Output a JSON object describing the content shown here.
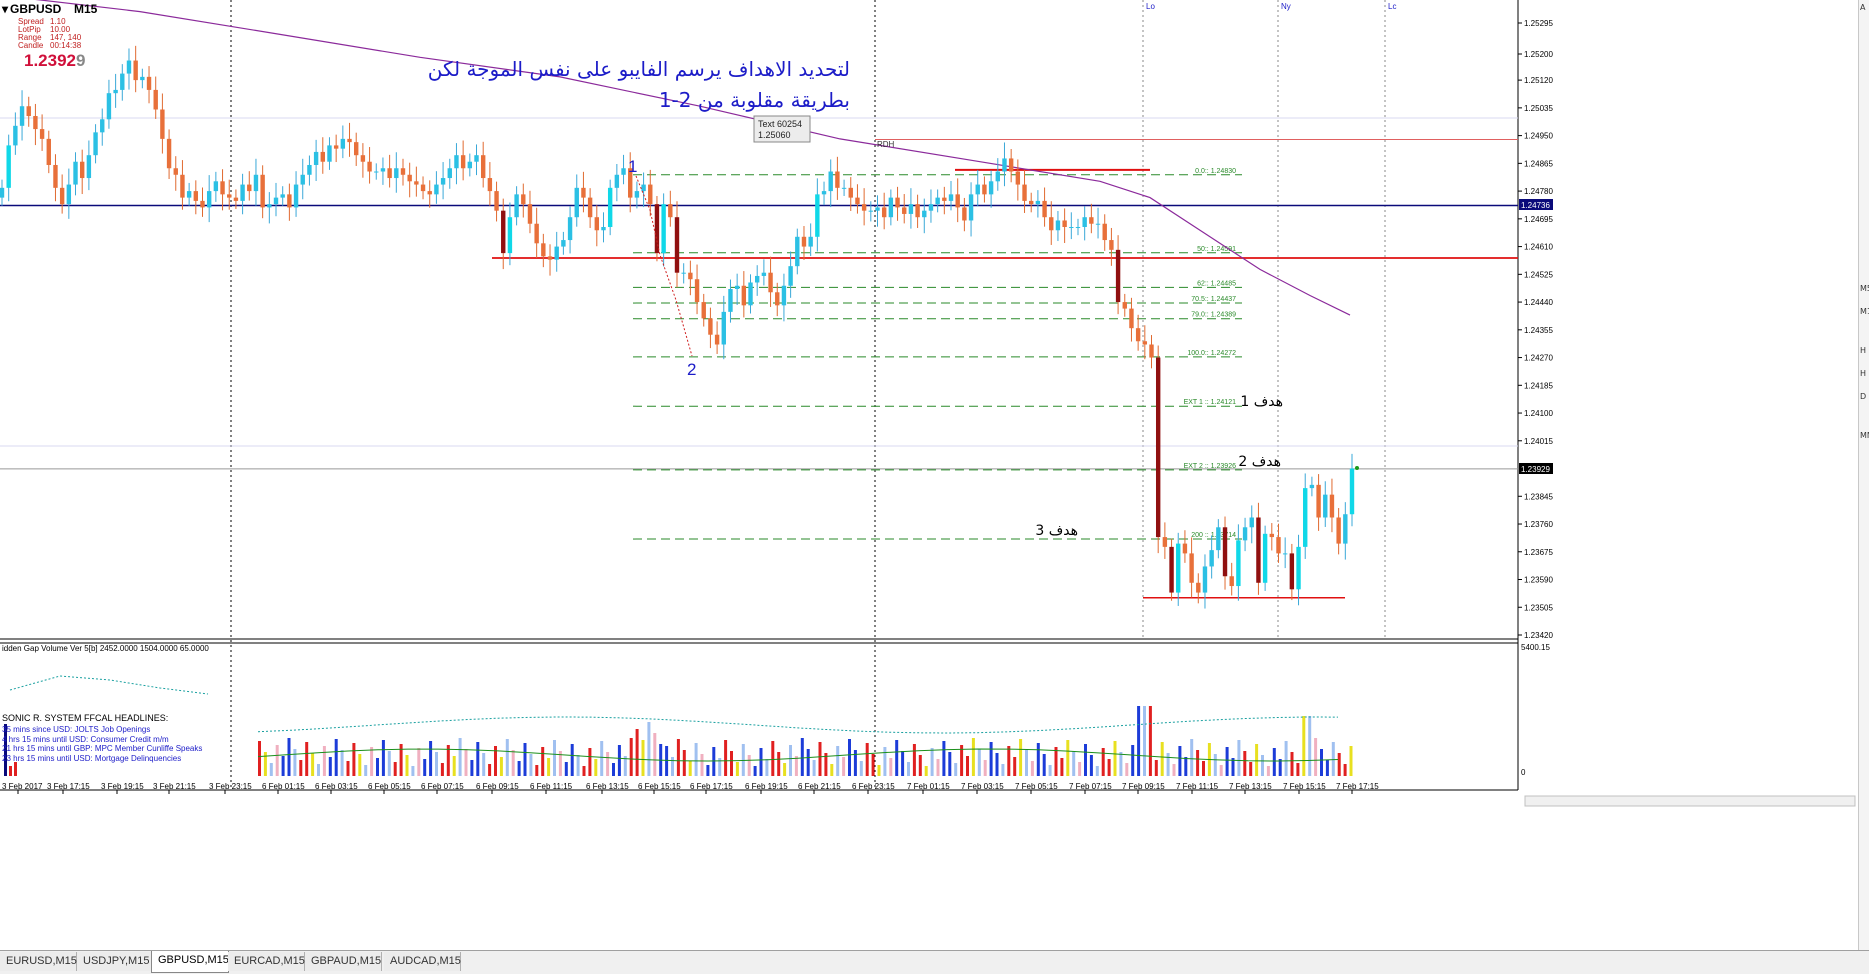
{
  "header": {
    "symbol": "GBPUSD",
    "timeframe": "M15",
    "spread_label": "Spread",
    "spread_value": "1.10",
    "lotpip_label": "LotPip",
    "lotpip_value": "10.00",
    "range_label": "Range",
    "range_value": "147, 140",
    "candle_label": "Candle",
    "candle_value": "00:14:38",
    "price_main": "1.2392",
    "price_last_digit": "9"
  },
  "annotation": {
    "line1": "لتحديد الاهداف يرسم الفايبو على نفس الموجة لكن",
    "line2": "بطريقة مقلوبة من 2-1",
    "tooltip_line1": "Text 60254",
    "tooltip_line2": "1.25060",
    "wave_label_1": "1",
    "wave_label_2": "2",
    "target1": "هدف 1",
    "target2": "هدف 2",
    "target3": "هدف 3",
    "rdh": "RDH"
  },
  "session_labels": [
    "Lo",
    "Ny",
    "Lc"
  ],
  "fib_levels": [
    {
      "label": "0.0:: 1.24830",
      "price": 1.2483
    },
    {
      "label": "50:: 1.24591",
      "price": 1.24591
    },
    {
      "label": "62:: 1.24485",
      "price": 1.24485
    },
    {
      "label": "70.5:: 1.24437",
      "price": 1.24437
    },
    {
      "label": "79.0:: 1.24389",
      "price": 1.24389
    },
    {
      "label": "100.0:: 1.24272",
      "price": 1.24272
    },
    {
      "label": "EXT 1 :: 1.24121",
      "price": 1.24121
    },
    {
      "label": "EXT 2 :: 1.23926",
      "price": 1.23926
    },
    {
      "label": "200 :: 1.23714",
      "price": 1.23714
    }
  ],
  "horizontal_lines": {
    "blue_price": 1.24736,
    "current_price": 1.23929,
    "red_support_price": 1.24575,
    "red_bottom_price": 1.23534,
    "red_top_price": 1.24845,
    "top_red_thin_price": 1.24938
  },
  "price_tags": {
    "blue": "1.24736",
    "current": "1.23929"
  },
  "indicator": {
    "title": "idden Gap Volume Ver 5[b] 2452.0000 1504.0000 65.0000",
    "axis_top": "5400.15",
    "axis_bottom": "0",
    "headline_title": "SONIC R. SYSTEM  FFCAL HEADLINES:",
    "headlines": [
      "35 mins since USD: JOLTS Job Openings",
      "4 hrs 15 mins until USD: Consumer Credit m/m",
      "21 hrs 15 mins until GBP: MPC Member Cunliffe Speaks",
      "23 hrs 15 mins until USD: Mortgage Delinquencies"
    ]
  },
  "right_panel_letters": [
    "A",
    "M5",
    "M1",
    "H",
    "H",
    "D",
    "MN"
  ],
  "tabs": [
    "EURUSD,M15",
    "USDJPY,M15",
    "GBPUSD,M15",
    "EURCAD,M15",
    "GBPAUD,M15",
    "AUDCAD,M15"
  ],
  "active_tab": "GBPUSD,M15",
  "chart_data": {
    "type": "candlestick",
    "title": "GBPUSD M15",
    "y_axis_ticks": [
      "1.25295",
      "1.25200",
      "1.25120",
      "1.25035",
      "1.24950",
      "1.24865",
      "1.24780",
      "1.24695",
      "1.24610",
      "1.24525",
      "1.24440",
      "1.24355",
      "1.24270",
      "1.24185",
      "1.24100",
      "1.24015",
      "1.23845",
      "1.23760",
      "1.23675",
      "1.23590",
      "1.23505",
      "1.23420"
    ],
    "y_range": [
      1.2339,
      1.2535
    ],
    "x_axis_labels": [
      "3 Feb 2017",
      "3 Feb 17:15",
      "3 Feb 19:15",
      "3 Feb 21:15",
      "3 Feb 23:15",
      "6 Feb 01:15",
      "6 Feb 03:15",
      "6 Feb 05:15",
      "6 Feb 07:15",
      "6 Feb 09:15",
      "6 Feb 11:15",
      "6 Feb 13:15",
      "6 Feb 15:15",
      "6 Feb 17:15",
      "6 Feb 19:15",
      "6 Feb 21:15",
      "6 Feb 23:15",
      "7 Feb 01:15",
      "7 Feb 03:15",
      "7 Feb 05:15",
      "7 Feb 07:15",
      "7 Feb 09:15",
      "7 Feb 11:15",
      "7 Feb 13:15",
      "7 Feb 15:15",
      "7 Feb 17:15"
    ],
    "close": [
      1.2479,
      1.2492,
      1.2498,
      1.2504,
      1.2501,
      1.2497,
      1.2494,
      1.2486,
      1.2479,
      1.2474,
      1.248,
      1.2487,
      1.2482,
      1.2489,
      1.2496,
      1.25,
      1.2508,
      1.2509,
      1.2514,
      1.2518,
      1.2512,
      1.2513,
      1.2509,
      1.2503,
      1.2494,
      1.2485,
      1.2483,
      1.2476,
      1.2478,
      1.2475,
      1.2473,
      1.2478,
      1.2481,
      1.2477,
      1.2476,
      1.2475,
      1.248,
      1.2478,
      1.2483,
      1.2473,
      1.2474,
      1.2476,
      1.2477,
      1.2473,
      1.248,
      1.2483,
      1.2486,
      1.249,
      1.2487,
      1.2492,
      1.2491,
      1.2494,
      1.2493,
      1.2489,
      1.2487,
      1.2484,
      1.2484,
      1.2485,
      1.2482,
      1.2485,
      1.2483,
      1.2481,
      1.248,
      1.2478,
      1.2477,
      1.248,
      1.2482,
      1.2485,
      1.2489,
      1.2485,
      1.2487,
      1.2489,
      1.2482,
      1.2478,
      1.2472,
      1.2459,
      1.247,
      1.2477,
      1.2474,
      1.2468,
      1.2462,
      1.2458,
      1.2457,
      1.2461,
      1.2463,
      1.247,
      1.2479,
      1.2476,
      1.247,
      1.2466,
      1.2467,
      1.2479,
      1.2483,
      1.2485,
      1.2476,
      1.2478,
      1.248,
      1.2474,
      1.2459,
      1.2474,
      1.247,
      1.2453,
      1.2453,
      1.2451,
      1.2444,
      1.2439,
      1.2434,
      1.2431,
      1.2441,
      1.2448,
      1.2449,
      1.2443,
      1.245,
      1.2452,
      1.2453,
      1.2447,
      1.2443,
      1.2449,
      1.2455,
      1.2464,
      1.2461,
      1.2464,
      1.2477,
      1.2478,
      1.2484,
      1.2479,
      1.2479,
      1.2476,
      1.2474,
      1.2472,
      1.2472,
      1.2473,
      1.247,
      1.2476,
      1.2473,
      1.2471,
      1.2474,
      1.247,
      1.2472,
      1.2474,
      1.2476,
      1.2475,
      1.2477,
      1.2473,
      1.2469,
      1.2477,
      1.248,
      1.2477,
      1.2481,
      1.2484,
      1.2488,
      1.2484,
      1.248,
      1.2475,
      1.2474,
      1.2475,
      1.247,
      1.2466,
      1.2469,
      1.2467,
      1.2467,
      1.2467,
      1.247,
      1.2468,
      1.2468,
      1.2463,
      1.246,
      1.2444,
      1.2442,
      1.2436,
      1.2432,
      1.2431,
      1.2427,
      1.2372,
      1.2369,
      1.2355,
      1.237,
      1.2367,
      1.2358,
      1.2355,
      1.2363,
      1.2368,
      1.2375,
      1.236,
      1.2357,
      1.2371,
      1.2375,
      1.2378,
      1.2358,
      1.2373,
      1.2372,
      1.2367,
      1.2367,
      1.2356,
      1.2369,
      1.2387,
      1.2388,
      1.2378,
      1.2385,
      1.2378,
      1.237,
      1.2379,
      1.2393
    ],
    "ma_points": [
      [
        0,
        1.2538
      ],
      [
        140,
        1.2533
      ],
      [
        280,
        1.2526
      ],
      [
        420,
        1.2519
      ],
      [
        560,
        1.2513
      ],
      [
        700,
        1.2504
      ],
      [
        840,
        1.2494
      ],
      [
        980,
        1.2487
      ],
      [
        1100,
        1.2481
      ],
      [
        1150,
        1.2476
      ],
      [
        1200,
        1.2466
      ],
      [
        1260,
        1.2454
      ],
      [
        1310,
        1.2446
      ],
      [
        1350,
        1.244
      ]
    ]
  }
}
